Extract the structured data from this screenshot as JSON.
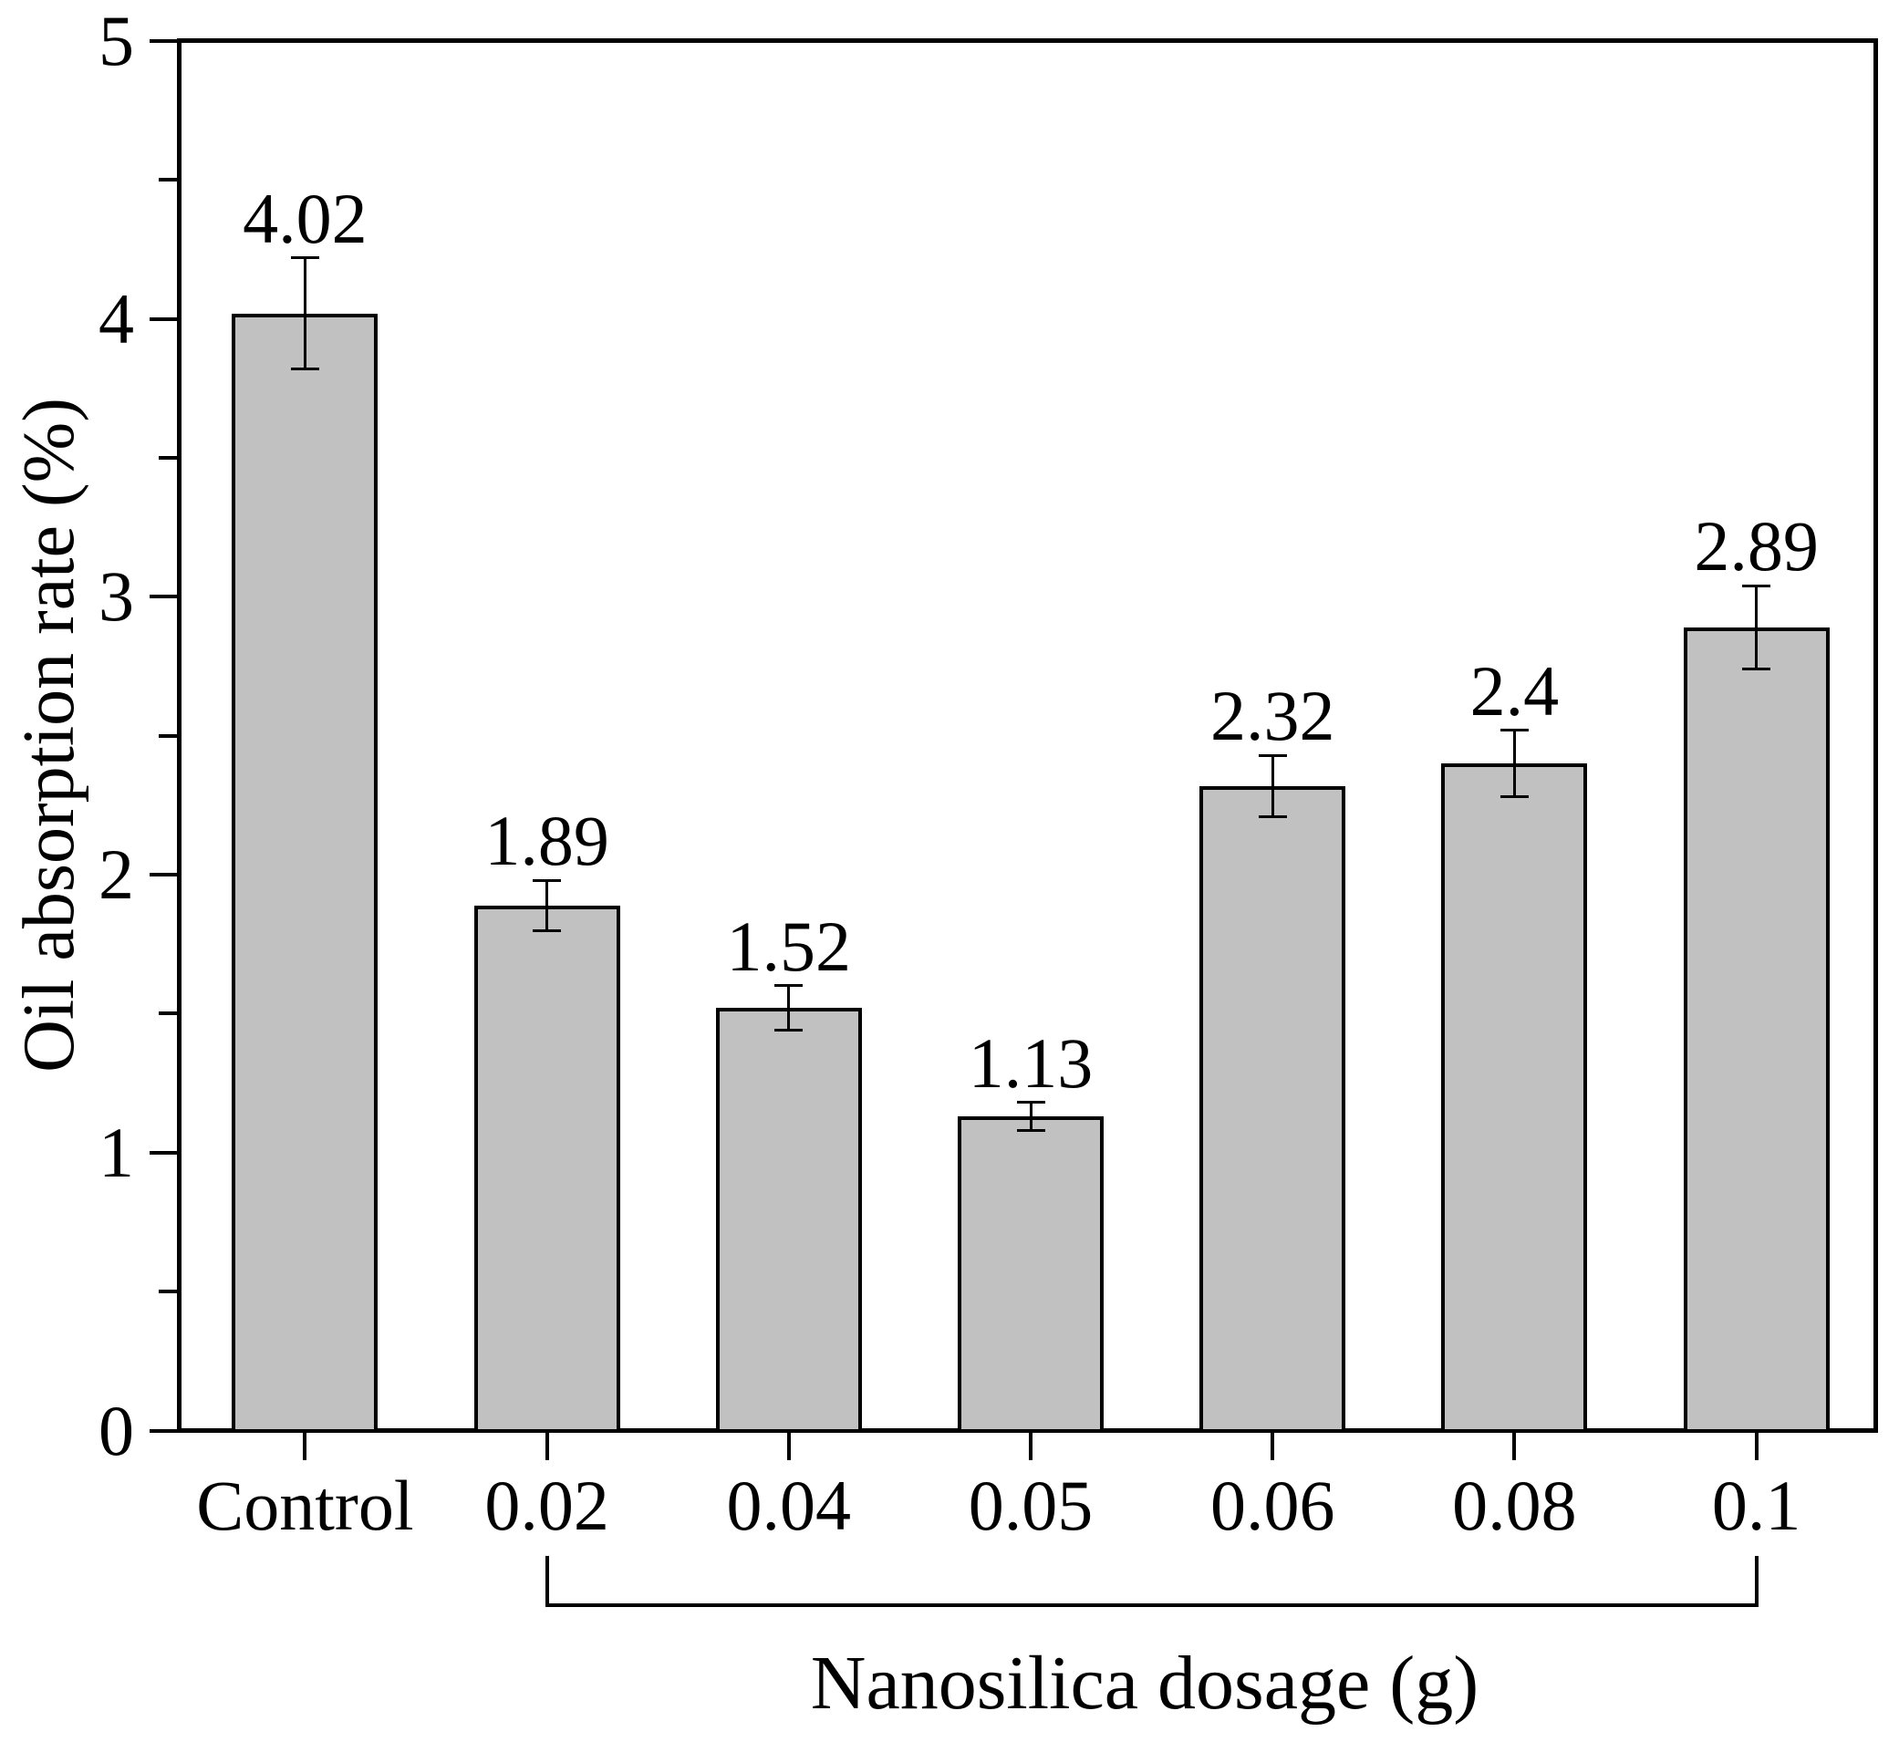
{
  "figure": {
    "background": "#ffffff",
    "text_color": "#000000"
  },
  "chart_data": {
    "type": "bar",
    "title": "",
    "categories": [
      "Control",
      "0.02",
      "0.04",
      "0.05",
      "0.06",
      "0.08",
      "0.1"
    ],
    "values": [
      4.02,
      1.89,
      1.52,
      1.13,
      2.32,
      2.4,
      2.89
    ],
    "errors": [
      0.2,
      0.09,
      0.08,
      0.05,
      0.11,
      0.12,
      0.15
    ],
    "value_labels": [
      "4.02",
      "1.89",
      "1.52",
      "1.13",
      "2.32",
      "2.4",
      "2.89"
    ],
    "xlabel": "Nanosilica dosage (g)",
    "ylabel": "Oil absorption rate (%)",
    "ylim": [
      0,
      5
    ],
    "y_axis": {
      "major": [
        {
          "value": 0,
          "label": "0"
        },
        {
          "value": 1,
          "label": "1"
        },
        {
          "value": 2,
          "label": "2"
        },
        {
          "value": 3,
          "label": "3"
        },
        {
          "value": 4,
          "label": "4"
        },
        {
          "value": 5,
          "label": "5"
        }
      ],
      "minor_values": [
        0.5,
        1.5,
        2.5,
        3.5,
        4.5
      ]
    },
    "grid": false,
    "legend": false,
    "bar_fill": "#c1c1c1",
    "bar_edge": "#000000",
    "error_color": "#000000",
    "bracket": {
      "from": "0.02",
      "to": "0.1"
    }
  }
}
